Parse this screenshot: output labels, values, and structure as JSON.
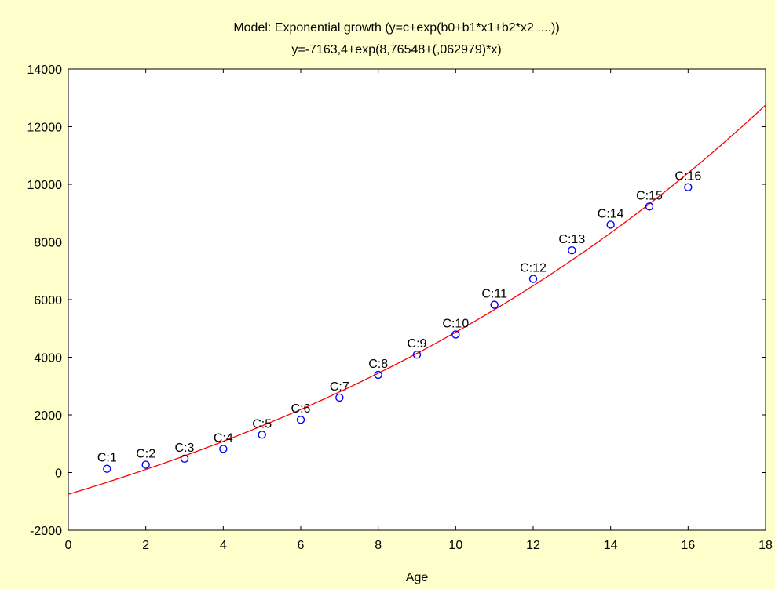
{
  "chart_data": {
    "type": "scatter",
    "title": "Model: Exponential growth (y=c+exp(b0+b1*x1+b2*x2 ....))",
    "subtitle": "y=-7163,4+exp(8,76548+(,062979)*x)",
    "xlabel": "Age",
    "ylabel": "",
    "xlim": [
      0,
      18
    ],
    "ylim": [
      -2000,
      14000
    ],
    "x_ticks": [
      "0",
      "2",
      "4",
      "6",
      "8",
      "10",
      "12",
      "14",
      "16",
      "18"
    ],
    "y_ticks": [
      "-2000",
      "0",
      "2000",
      "4000",
      "6000",
      "8000",
      "10000",
      "12000",
      "14000"
    ],
    "grid": false,
    "colors": {
      "background": "#ffffcc",
      "plot_background": "#ffffff",
      "points": "#0000ff",
      "fit_line": "#ff0000",
      "axis": "#000000"
    },
    "model": {
      "c": -7163.4,
      "b0": 8.76548,
      "b1": 0.062979
    },
    "points": [
      {
        "label": "C:1",
        "x": 1,
        "y": 130
      },
      {
        "label": "C:2",
        "x": 2,
        "y": 270
      },
      {
        "label": "C:3",
        "x": 3,
        "y": 480
      },
      {
        "label": "C:4",
        "x": 4,
        "y": 820
      },
      {
        "label": "C:5",
        "x": 5,
        "y": 1310
      },
      {
        "label": "C:6",
        "x": 6,
        "y": 1830
      },
      {
        "label": "C:7",
        "x": 7,
        "y": 2600
      },
      {
        "label": "C:8",
        "x": 8,
        "y": 3390
      },
      {
        "label": "C:9",
        "x": 9,
        "y": 4090
      },
      {
        "label": "C:10",
        "x": 10,
        "y": 4790
      },
      {
        "label": "C:11",
        "x": 11,
        "y": 5820
      },
      {
        "label": "C:12",
        "x": 12,
        "y": 6720
      },
      {
        "label": "C:13",
        "x": 13,
        "y": 7710
      },
      {
        "label": "C:14",
        "x": 14,
        "y": 8600
      },
      {
        "label": "C:15",
        "x": 15,
        "y": 9230
      },
      {
        "label": "C:16",
        "x": 16,
        "y": 9900
      }
    ]
  }
}
